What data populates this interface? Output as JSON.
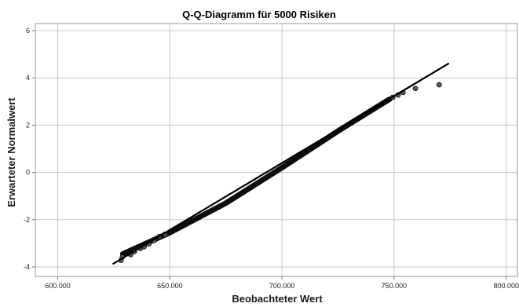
{
  "chart_data": {
    "type": "scatter",
    "title": "Q-Q-Diagramm für 5000 Risiken",
    "xlabel": "Beobachteter Wert",
    "ylabel": "Erwarteter Normalwert",
    "xlim": [
      590000,
      805000
    ],
    "ylim": [
      -4.4,
      6.3
    ],
    "x_ticks": [
      600000,
      650000,
      700000,
      750000,
      800000
    ],
    "x_tick_labels": [
      "600.000",
      "650.000",
      "700.000",
      "750.000",
      "800.000"
    ],
    "y_ticks": [
      -4,
      -2,
      0,
      2,
      4,
      6
    ],
    "y_tick_labels": [
      "-4",
      "-2",
      "0",
      "2",
      "4",
      "6"
    ],
    "grid": true,
    "reference_line": {
      "x": [
        624500,
        774500
      ],
      "y": [
        -3.88,
        4.62
      ]
    },
    "dense_band": {
      "x": [
        629000,
        650000,
        675000,
        700000,
        725000,
        748000
      ],
      "y": [
        -3.45,
        -2.55,
        -1.3,
        0.2,
        1.75,
        3.1
      ]
    },
    "series": [
      {
        "x": [
          628200,
          628800,
          632500,
          634200,
          636800,
          638500,
          640600,
          643000,
          645200,
          647800,
          749400,
          751800,
          754000,
          759500,
          770100
        ],
        "y": [
          -3.72,
          -3.58,
          -3.48,
          -3.35,
          -3.22,
          -3.15,
          -3.02,
          -2.88,
          -2.72,
          -2.62,
          3.18,
          3.28,
          3.38,
          3.55,
          3.71
        ]
      }
    ],
    "colors": {
      "points": "#555555",
      "point_edge": "#111111",
      "line": "#000000",
      "grid": "#c8c8c8",
      "frame": "#999999"
    }
  }
}
